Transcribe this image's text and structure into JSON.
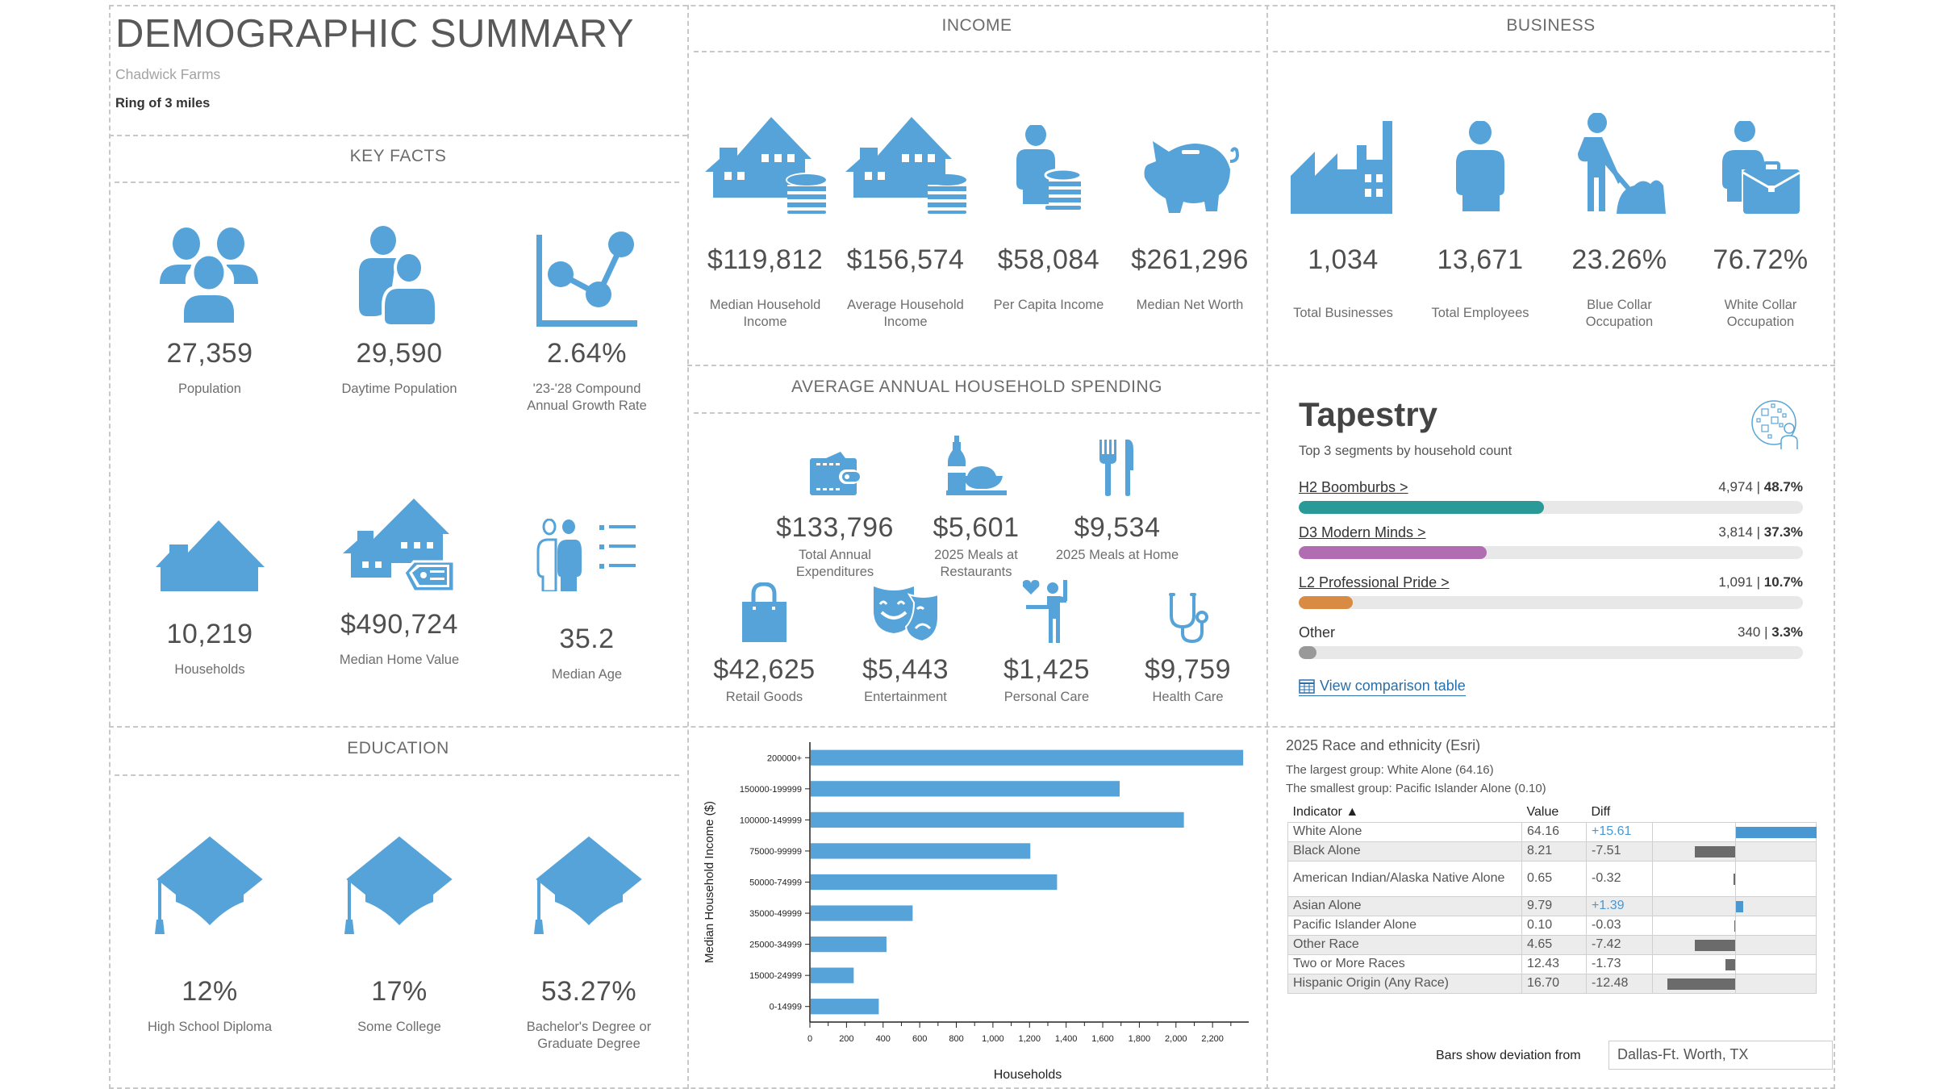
{
  "header": {
    "title": "DEMOGRAPHIC SUMMARY",
    "site": "Chadwick Farms",
    "ring": "Ring of 3 miles"
  },
  "key_facts": {
    "title": "KEY FACTS",
    "items": [
      {
        "icon": "people-group-icon",
        "value": "27,359",
        "label": "Population"
      },
      {
        "icon": "daytime-people-icon",
        "value": "29,590",
        "label": "Daytime Population"
      },
      {
        "icon": "growth-chart-icon",
        "value": "2.64%",
        "label": "'23-'28 Compound Annual Growth Rate"
      },
      {
        "icon": "house-icon",
        "value": "10,219",
        "label": "Households"
      },
      {
        "icon": "house-price-tag-icon",
        "value": "$490,724",
        "label": "Median Home Value"
      },
      {
        "icon": "age-list-icon",
        "value": "35.2",
        "label": "Median Age"
      }
    ]
  },
  "education": {
    "title": "EDUCATION",
    "items": [
      {
        "icon": "graduation-cap-icon",
        "value": "12%",
        "label": "High School Diploma"
      },
      {
        "icon": "graduation-cap-icon",
        "value": "17%",
        "label": "Some College"
      },
      {
        "icon": "graduation-cap-icon",
        "value": "53.27%",
        "label": "Bachelor's Degree or Graduate Degree"
      }
    ]
  },
  "income": {
    "title": "INCOME",
    "items": [
      {
        "icon": "house-coins-icon",
        "value": "$119,812",
        "label": "Median Household Income"
      },
      {
        "icon": "house-coins-icon",
        "value": "$156,574",
        "label": "Average Household Income"
      },
      {
        "icon": "person-coins-icon",
        "value": "$58,084",
        "label": "Per Capita Income"
      },
      {
        "icon": "piggy-bank-icon",
        "value": "$261,296",
        "label": "Median Net Worth"
      }
    ]
  },
  "business": {
    "title": "BUSINESS",
    "items": [
      {
        "icon": "factory-icon",
        "value": "1,034",
        "label": "Total Businesses"
      },
      {
        "icon": "employee-icon",
        "value": "13,671",
        "label": "Total Employees"
      },
      {
        "icon": "blue-collar-worker-icon",
        "value": "23.26%",
        "label": "Blue Collar Occupation"
      },
      {
        "icon": "white-collar-briefcase-icon",
        "value": "76.72%",
        "label": "White Collar Occupation"
      }
    ]
  },
  "spending": {
    "title": "AVERAGE ANNUAL HOUSEHOLD SPENDING",
    "items": [
      {
        "icon": "wallet-icon",
        "value": "$133,796",
        "label": "Total Annual Expenditures"
      },
      {
        "icon": "restaurant-meal-icon",
        "value": "$5,601",
        "label": "2025 Meals at Restaurants"
      },
      {
        "icon": "fork-knife-icon",
        "value": "$9,534",
        "label": "2025 Meals at Home"
      },
      {
        "icon": "shopping-bag-icon",
        "value": "$42,625",
        "label": "Retail Goods"
      },
      {
        "icon": "theater-masks-icon",
        "value": "$5,443",
        "label": "Entertainment"
      },
      {
        "icon": "personal-care-icon",
        "value": "$1,425",
        "label": "Personal Care"
      },
      {
        "icon": "stethoscope-icon",
        "value": "$9,759",
        "label": "Health Care"
      }
    ]
  },
  "tapestry": {
    "title": "Tapestry",
    "subtitle": "Top 3 segments by household count",
    "icon": "tapestry-globe-person-icon",
    "segments": [
      {
        "name": "H2 Boomburbs >",
        "count": "4,974",
        "pct": "48.7%",
        "fraction": 0.487,
        "color": "#2a9a98",
        "link": true
      },
      {
        "name": "D3 Modern Minds >",
        "count": "3,814",
        "pct": "37.3%",
        "fraction": 0.373,
        "color": "#b06db1",
        "link": true
      },
      {
        "name": "L2 Professional Pride >",
        "count": "1,091",
        "pct": "10.7%",
        "fraction": 0.107,
        "color": "#d98a43",
        "link": true
      },
      {
        "name": "Other",
        "count": "340",
        "pct": "3.3%",
        "fraction": 0.033,
        "color": "#999999",
        "link": false
      }
    ],
    "link_label": "View comparison table"
  },
  "race": {
    "title": "2025 Race and ethnicity (Esri)",
    "largest": "The largest group: White Alone (64.16)",
    "smallest": "The smallest group: Pacific Islander Alone (0.10)",
    "columns": [
      "Indicator ▲",
      "Value",
      "Diff"
    ],
    "rows": [
      {
        "indicator": "White Alone",
        "value": "64.16",
        "diff": "+15.61",
        "diff_num": 15.61
      },
      {
        "indicator": "Black Alone",
        "value": "8.21",
        "diff": "-7.51",
        "diff_num": -7.51
      },
      {
        "indicator": "American Indian/Alaska Native Alone",
        "value": "0.65",
        "diff": "-0.32",
        "diff_num": -0.32
      },
      {
        "indicator": "Asian Alone",
        "value": "9.79",
        "diff": "+1.39",
        "diff_num": 1.39
      },
      {
        "indicator": "Pacific Islander Alone",
        "value": "0.10",
        "diff": "-0.03",
        "diff_num": -0.03
      },
      {
        "indicator": "Other Race",
        "value": "4.65",
        "diff": "-7.42",
        "diff_num": -7.42
      },
      {
        "indicator": "Two or More Races",
        "value": "12.43",
        "diff": "-1.73",
        "diff_num": -1.73
      },
      {
        "indicator": "Hispanic Origin (Any Race)",
        "value": "16.70",
        "diff": "-12.48",
        "diff_num": -12.48
      }
    ],
    "deviation_label": "Bars show deviation from",
    "deviation_area": "Dallas-Ft. Worth, TX",
    "colors": {
      "positive": "#4a98d2",
      "negative": "#6b6b6b"
    }
  },
  "chart_data": {
    "type": "bar",
    "orientation": "horizontal",
    "title": "",
    "xlabel": "Households",
    "ylabel": "Median Household Income ($)",
    "categories": [
      "200000+",
      "150000-199999",
      "100000-149999",
      "75000-99999",
      "50000-74999",
      "35000-49999",
      "25000-34999",
      "15000-24999",
      "0-14999"
    ],
    "values": [
      2363,
      1688,
      2039,
      1200,
      1346,
      557,
      414,
      235,
      372
    ],
    "xlim": [
      0,
      2380
    ],
    "xticks": [
      0,
      200,
      400,
      600,
      800,
      1000,
      1200,
      1400,
      1600,
      1800,
      2000,
      2200
    ],
    "xtick_labels": [
      "0",
      "200",
      "400",
      "600",
      "800",
      "1,000",
      "1,200",
      "1,400",
      "1,600",
      "1,800",
      "2,000",
      "2,200"
    ],
    "grid": false,
    "color": "#55a3d8"
  }
}
